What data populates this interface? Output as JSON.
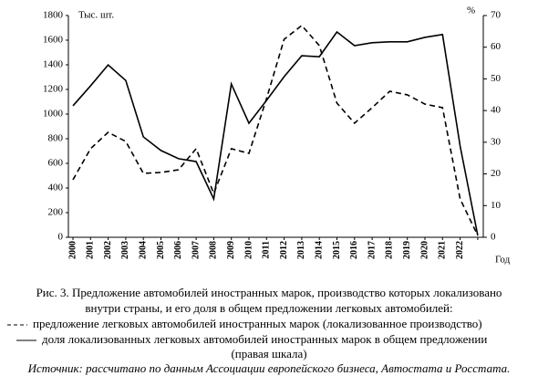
{
  "chart_data": {
    "type": "line",
    "categories": [
      "2000",
      "2001",
      "2002",
      "2003",
      "2004",
      "2005",
      "2006",
      "2007",
      "2008",
      "2009",
      "2010",
      "2011",
      "2012",
      "2013",
      "2014",
      "2015",
      "2016",
      "2017",
      "2018",
      "2019",
      "2020",
      "2021",
      "2022",
      null
    ],
    "series": [
      {
        "name": "предложение легковых автомобилей иностранных марок (локализованное производство)",
        "color": "#000000",
        "dash": true,
        "values": [
          467,
          719,
          852,
          778,
          519,
          526,
          548,
          719,
          356,
          719,
          681,
          1126,
          1607,
          1719,
          1556,
          1089,
          926,
          1052,
          1185,
          1156,
          1081,
          1052,
          311,
          15
        ]
      },
      {
        "name": "доля локализованных легковых автомобилей иностранных марок в общем предложении",
        "color": "#000000",
        "dash": false,
        "axis": "y2",
        "values": [
          41.5,
          47.8,
          54.4,
          49.5,
          31.7,
          27.4,
          24.8,
          23.9,
          12.1,
          48.4,
          36,
          43.2,
          50.7,
          57.3,
          57,
          64.8,
          60.5,
          61.4,
          61.7,
          61.7,
          63.1,
          64,
          28.8,
          0.6
        ]
      }
    ],
    "ylabel": "Тыс. шт.",
    "y2label": "%",
    "xlabel": "Год",
    "ylim": [
      0,
      1800
    ],
    "yticks": [
      0,
      200,
      400,
      600,
      800,
      1000,
      1200,
      1400,
      1600,
      1800
    ],
    "y2lim": [
      0,
      70
    ],
    "y2ticks": [
      0,
      10,
      20,
      30,
      40,
      50,
      60,
      70
    ],
    "caption": [
      "Рис. 3. Предложение автомобилей иностранных марок, производство которых локализовано",
      "внутри страны, и его доля в общем предложении легковых автомобилей:"
    ],
    "note": "(правая шкала)",
    "source": "Источник: рассчитано по данным Ассоциации европейского бизнеса, Автостата и Росстата.",
    "grid": false
  }
}
